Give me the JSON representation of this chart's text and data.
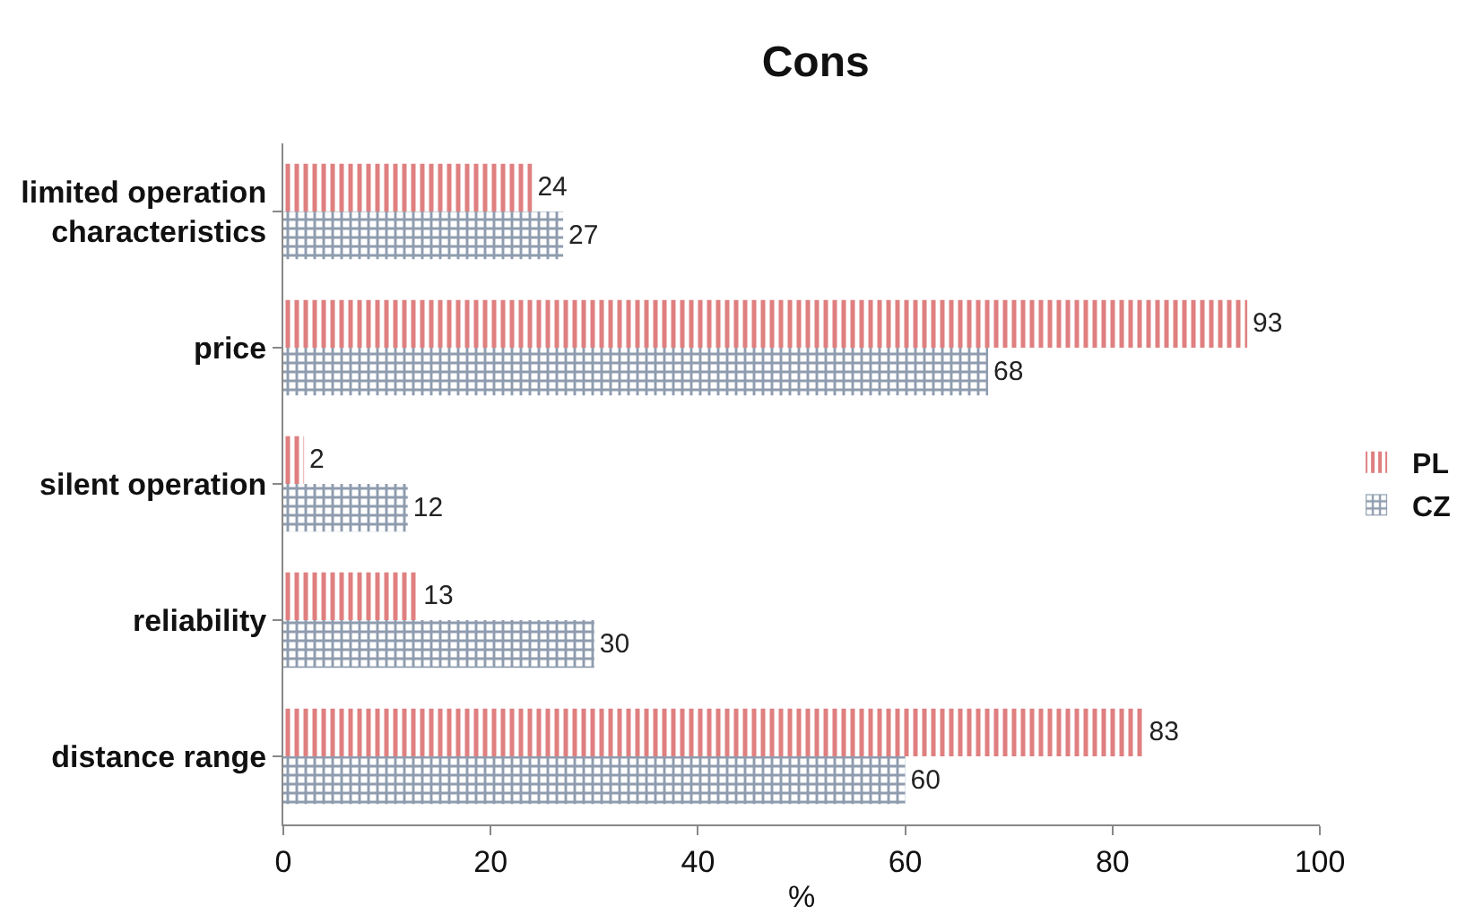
{
  "chart_data": {
    "type": "bar",
    "orientation": "horizontal",
    "title": "Cons",
    "xlabel": "%",
    "categories": [
      "limited operation characteristics",
      "price",
      "silent operation",
      "reliability",
      "distance range"
    ],
    "series": [
      {
        "name": "PL",
        "color": "#c00000",
        "values": [
          24,
          93,
          2,
          13,
          83
        ]
      },
      {
        "name": "CZ",
        "color": "#1f3a5f",
        "values": [
          27,
          68,
          12,
          30,
          60
        ]
      }
    ],
    "xlim": [
      0,
      100
    ],
    "xticks": [
      0,
      20,
      40,
      60,
      80,
      100
    ],
    "grid": false,
    "legend": "right",
    "data_labels": true
  }
}
